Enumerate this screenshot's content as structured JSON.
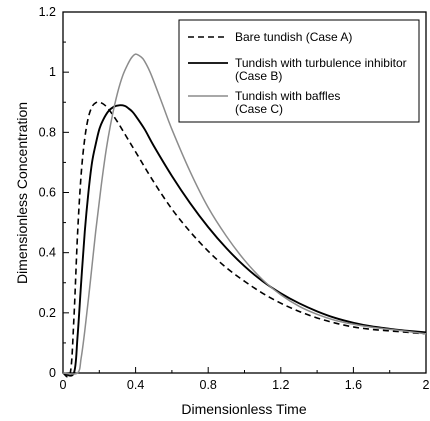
{
  "chart_data": {
    "type": "line",
    "title": "",
    "xlabel": "Dimensionless Time",
    "ylabel": "Dimensionless Concentration",
    "xlim": [
      0,
      2
    ],
    "ylim": [
      0,
      1.2
    ],
    "x_ticks": [
      "0",
      "0.4",
      "0.8",
      "1.2",
      "1.6",
      "2"
    ],
    "y_ticks": [
      "0",
      "0.2",
      "0.4",
      "0.6",
      "0.8",
      "1",
      "1.2"
    ],
    "grid": false,
    "legend_position": "top-right",
    "series": [
      {
        "name": "Bare tundish (Case A)",
        "style": "dashed",
        "color": "#000000",
        "x": [
          0,
          0.04,
          0.06,
          0.08,
          0.1,
          0.12,
          0.14,
          0.16,
          0.18,
          0.2,
          0.22,
          0.24,
          0.26,
          0.3,
          0.35,
          0.4,
          0.5,
          0.6,
          0.7,
          0.8,
          0.9,
          1.0,
          1.1,
          1.2,
          1.3,
          1.4,
          1.5,
          1.6,
          1.7,
          1.8,
          1.9,
          2.0
        ],
        "y": [
          0,
          0.0,
          0.18,
          0.46,
          0.66,
          0.78,
          0.85,
          0.885,
          0.898,
          0.9,
          0.895,
          0.885,
          0.87,
          0.835,
          0.785,
          0.735,
          0.635,
          0.545,
          0.47,
          0.405,
          0.35,
          0.305,
          0.265,
          0.232,
          0.205,
          0.183,
          0.166,
          0.153,
          0.145,
          0.14,
          0.135,
          0.13
        ]
      },
      {
        "name": "Tundish with turbulence inhibitor (Case B)",
        "style": "solid",
        "color": "#000000",
        "x": [
          0,
          0.06,
          0.08,
          0.1,
          0.12,
          0.14,
          0.16,
          0.18,
          0.2,
          0.22,
          0.25,
          0.28,
          0.31,
          0.34,
          0.36,
          0.38,
          0.4,
          0.45,
          0.5,
          0.6,
          0.7,
          0.8,
          0.9,
          1.0,
          1.1,
          1.2,
          1.3,
          1.4,
          1.5,
          1.6,
          1.7,
          1.8,
          1.9,
          2.0
        ],
        "y": [
          0,
          0.0,
          0.12,
          0.3,
          0.47,
          0.6,
          0.7,
          0.76,
          0.81,
          0.84,
          0.87,
          0.885,
          0.89,
          0.888,
          0.88,
          0.87,
          0.855,
          0.81,
          0.755,
          0.655,
          0.565,
          0.485,
          0.415,
          0.355,
          0.305,
          0.265,
          0.232,
          0.205,
          0.183,
          0.167,
          0.155,
          0.147,
          0.14,
          0.135
        ]
      },
      {
        "name": "Tundish with baffles (Case C)",
        "style": "solid",
        "color": "#8c8c8c",
        "x": [
          0,
          0.08,
          0.1,
          0.12,
          0.15,
          0.18,
          0.21,
          0.24,
          0.27,
          0.3,
          0.33,
          0.36,
          0.38,
          0.4,
          0.42,
          0.44,
          0.46,
          0.48,
          0.5,
          0.55,
          0.6,
          0.7,
          0.8,
          0.9,
          1.0,
          1.1,
          1.2,
          1.3,
          1.4,
          1.5,
          1.6,
          1.7,
          1.8,
          1.9,
          2.0
        ],
        "y": [
          0,
          0.0,
          0.05,
          0.14,
          0.3,
          0.47,
          0.62,
          0.75,
          0.85,
          0.93,
          0.99,
          1.03,
          1.05,
          1.06,
          1.055,
          1.045,
          1.025,
          1.0,
          0.97,
          0.89,
          0.81,
          0.67,
          0.55,
          0.455,
          0.375,
          0.31,
          0.26,
          0.222,
          0.195,
          0.175,
          0.162,
          0.152,
          0.145,
          0.138,
          0.13
        ]
      }
    ],
    "legend": [
      {
        "line1": "Bare tundish (Case A)",
        "line2": ""
      },
      {
        "line1": "Tundish with turbulence inhibitor",
        "line2": "(Case B)"
      },
      {
        "line1": "Tundish with baffles",
        "line2": "(Case C)"
      }
    ]
  }
}
